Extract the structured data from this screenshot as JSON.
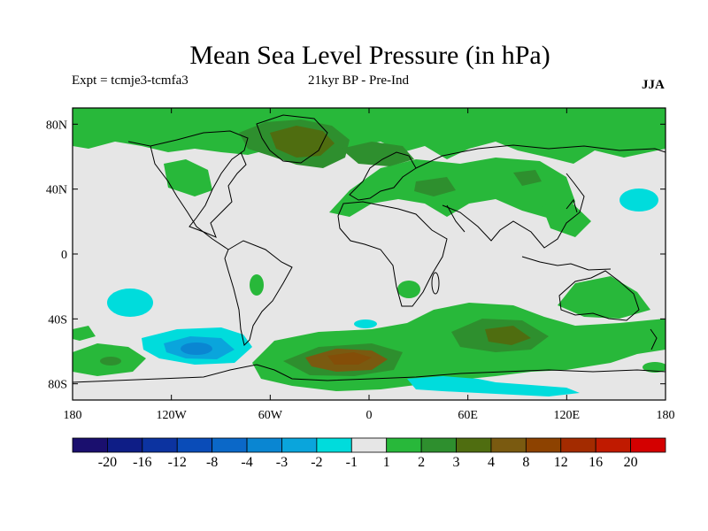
{
  "title": "Mean Sea Level Pressure (in hPa)",
  "subtitle_left": "Expt = tcmje3-tcmfa3",
  "subtitle_center": "21kyr BP - Pre-Ind",
  "subtitle_right": "JJA",
  "lat_ticks": [
    "80N",
    "40N",
    "0",
    "40S",
    "80S"
  ],
  "lon_ticks": [
    "180",
    "120W",
    "60W",
    "0",
    "60E",
    "120E",
    "180"
  ],
  "colorbar": {
    "colors": [
      "#1a0f6e",
      "#0e1d86",
      "#0c33a0",
      "#0a4cb8",
      "#0b68c8",
      "#0a86d2",
      "#0aa5dc",
      "#00dcdc",
      "#e6e6e6",
      "#28b83a",
      "#2e8f2e",
      "#4f6d10",
      "#7a5a10",
      "#8d4200",
      "#a32b00",
      "#c01a00",
      "#d40000"
    ],
    "labels": [
      "-20",
      "-16",
      "-12",
      "-8",
      "-4",
      "-3",
      "-2",
      "-1",
      "1",
      "2",
      "3",
      "4",
      "8",
      "12",
      "16",
      "20"
    ]
  },
  "map_colors": {
    "background": "#e6e6e6",
    "green": "#28b83a",
    "dark_green": "#2e8f2e",
    "olive": "#4f6d10",
    "brown": "#7a5a10",
    "cyan": "#00dcdc",
    "light_blue": "#0aa5dc",
    "blue": "#0a86d2"
  }
}
